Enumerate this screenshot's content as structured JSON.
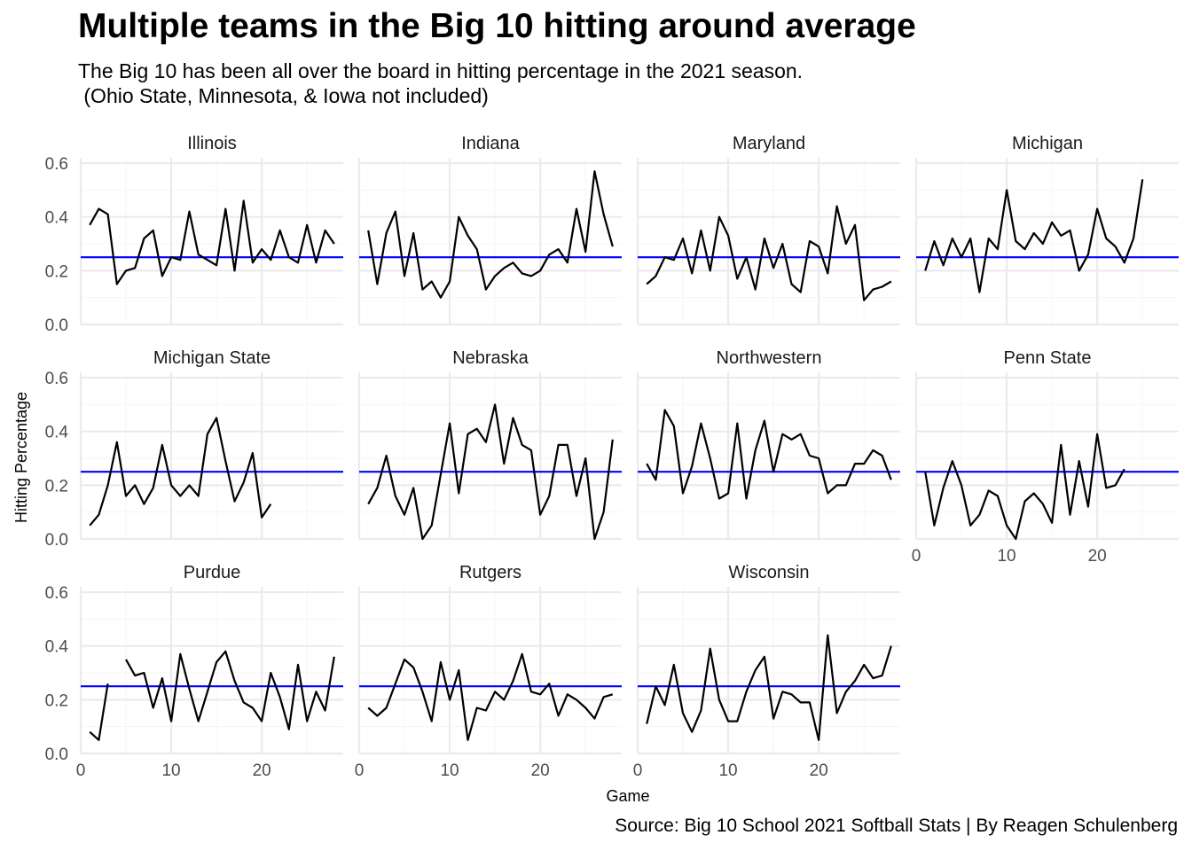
{
  "title": "Multiple teams in the Big 10 hitting around average",
  "subtitle": "The Big 10 has been all over the board in hitting percentage in the 2021 season.\n (Ohio State, Minnesota, & Iowa not included)",
  "caption": "Source: Big 10 School 2021 Softball Stats | By Reagen Schulenberg",
  "colors": {
    "line": "#000000",
    "reference": "#0000ff",
    "grid_major": "#ebebeb",
    "grid_minor": "#f5f5f5"
  },
  "chart_data": {
    "type": "line",
    "facets": "wrap",
    "ncol": 4,
    "xlabel": "Game",
    "ylabel": "Hitting Percentage",
    "xlim": [
      0,
      29
    ],
    "ylim": [
      0,
      0.62
    ],
    "x_ticks": [
      0,
      10,
      20
    ],
    "x_tick_labels": [
      "0",
      "10",
      "20"
    ],
    "y_ticks": [
      0,
      0.2,
      0.4,
      0.6
    ],
    "y_tick_labels": [
      "0.0",
      "0.2",
      "0.4",
      "0.6"
    ],
    "reference_line": 0.25,
    "grid": true,
    "panels": [
      {
        "name": "Illinois",
        "x": [
          1,
          2,
          3,
          4,
          5,
          6,
          7,
          8,
          9,
          10,
          11,
          12,
          13,
          14,
          15,
          16,
          17,
          18,
          19,
          20,
          21,
          22,
          23,
          24,
          25,
          26,
          27,
          28
        ],
        "y": [
          0.37,
          0.43,
          0.41,
          0.15,
          0.2,
          0.21,
          0.32,
          0.35,
          0.18,
          0.25,
          0.24,
          0.42,
          0.26,
          0.24,
          0.22,
          0.43,
          0.2,
          0.46,
          0.23,
          0.28,
          0.24,
          0.35,
          0.25,
          0.23,
          0.37,
          0.23,
          0.35,
          0.3
        ]
      },
      {
        "name": "Indiana",
        "x": [
          1,
          2,
          3,
          4,
          5,
          6,
          7,
          8,
          9,
          10,
          11,
          12,
          13,
          14,
          15,
          16,
          17,
          18,
          19,
          20,
          21,
          22,
          23,
          24,
          25,
          26,
          27,
          28
        ],
        "y": [
          0.35,
          0.15,
          0.34,
          0.42,
          0.18,
          0.34,
          0.13,
          0.16,
          0.1,
          0.16,
          0.4,
          0.33,
          0.28,
          0.13,
          0.18,
          0.21,
          0.23,
          0.19,
          0.18,
          0.2,
          0.26,
          0.28,
          0.23,
          0.43,
          0.27,
          0.57,
          0.41,
          0.29
        ]
      },
      {
        "name": "Maryland",
        "x": [
          1,
          2,
          3,
          4,
          5,
          6,
          7,
          8,
          9,
          10,
          11,
          12,
          13,
          14,
          15,
          16,
          17,
          18,
          19,
          20,
          21,
          22,
          23,
          24,
          25,
          26,
          27,
          28
        ],
        "y": [
          0.15,
          0.18,
          0.25,
          0.24,
          0.32,
          0.19,
          0.35,
          0.2,
          0.4,
          0.33,
          0.17,
          0.25,
          0.13,
          0.32,
          0.21,
          0.3,
          0.15,
          0.12,
          0.31,
          0.29,
          0.19,
          0.44,
          0.3,
          0.37,
          0.09,
          0.13,
          0.14,
          0.16
        ]
      },
      {
        "name": "Michigan",
        "x": [
          1,
          2,
          3,
          4,
          5,
          6,
          7,
          8,
          9,
          10,
          11,
          12,
          13,
          14,
          15,
          16,
          17,
          18,
          19,
          20,
          21,
          22,
          23,
          24,
          25
        ],
        "y": [
          0.2,
          0.31,
          0.22,
          0.32,
          0.25,
          0.32,
          0.12,
          0.32,
          0.28,
          0.5,
          0.31,
          0.28,
          0.34,
          0.3,
          0.38,
          0.33,
          0.35,
          0.2,
          0.26,
          0.43,
          0.32,
          0.29,
          0.23,
          0.32,
          0.54
        ]
      },
      {
        "name": "Michigan State",
        "x": [
          1,
          2,
          3,
          4,
          5,
          6,
          7,
          8,
          9,
          10,
          11,
          12,
          13,
          14,
          15,
          16,
          17,
          18,
          19,
          20,
          21
        ],
        "y": [
          0.05,
          0.09,
          0.2,
          0.36,
          0.16,
          0.2,
          0.13,
          0.19,
          0.35,
          0.2,
          0.16,
          0.2,
          0.16,
          0.39,
          0.45,
          0.29,
          0.14,
          0.21,
          0.32,
          0.08,
          0.13
        ]
      },
      {
        "name": "Nebraska",
        "x": [
          1,
          2,
          3,
          4,
          5,
          6,
          7,
          8,
          9,
          10,
          11,
          12,
          13,
          14,
          15,
          16,
          17,
          18,
          19,
          20,
          21,
          22,
          23,
          24,
          25,
          26,
          27,
          28
        ],
        "y": [
          0.13,
          0.19,
          0.31,
          0.16,
          0.09,
          0.19,
          0.0,
          0.05,
          0.24,
          0.43,
          0.17,
          0.39,
          0.41,
          0.36,
          0.5,
          0.28,
          0.45,
          0.35,
          0.33,
          0.09,
          0.16,
          0.35,
          0.35,
          0.16,
          0.3,
          0.0,
          0.1,
          0.37
        ]
      },
      {
        "name": "Northwestern",
        "x": [
          1,
          2,
          3,
          4,
          5,
          6,
          7,
          8,
          9,
          10,
          11,
          12,
          13,
          14,
          15,
          16,
          17,
          18,
          19,
          20,
          21,
          22,
          23,
          24,
          25,
          26,
          27,
          28
        ],
        "y": [
          0.28,
          0.22,
          0.48,
          0.42,
          0.17,
          0.27,
          0.43,
          0.3,
          0.15,
          0.17,
          0.43,
          0.15,
          0.33,
          0.44,
          0.25,
          0.39,
          0.37,
          0.39,
          0.31,
          0.3,
          0.17,
          0.2,
          0.2,
          0.28,
          0.28,
          0.33,
          0.31,
          0.22
        ]
      },
      {
        "name": "Penn State",
        "x": [
          1,
          2,
          3,
          4,
          5,
          6,
          7,
          8,
          9,
          10,
          11,
          12,
          13,
          14,
          15,
          16,
          17,
          18,
          19,
          20,
          21,
          22,
          23
        ],
        "y": [
          0.25,
          0.05,
          0.19,
          0.29,
          0.2,
          0.05,
          0.09,
          0.18,
          0.16,
          0.05,
          0.0,
          0.14,
          0.17,
          0.13,
          0.06,
          0.35,
          0.09,
          0.29,
          0.12,
          0.39,
          0.19,
          0.2,
          0.26
        ]
      },
      {
        "name": "Purdue",
        "x": [
          1,
          2,
          3,
          null,
          5,
          6,
          7,
          8,
          9,
          10,
          11,
          12,
          13,
          14,
          15,
          16,
          17,
          18,
          19,
          20,
          21,
          22,
          23,
          24,
          25,
          26,
          27,
          28
        ],
        "y": [
          0.08,
          0.05,
          0.26,
          null,
          0.35,
          0.29,
          0.3,
          0.17,
          0.28,
          0.12,
          0.37,
          0.24,
          0.12,
          0.23,
          0.34,
          0.38,
          0.27,
          0.19,
          0.17,
          0.12,
          0.3,
          0.21,
          0.09,
          0.33,
          0.12,
          0.23,
          0.16,
          0.36
        ]
      },
      {
        "name": "Rutgers",
        "x": [
          1,
          2,
          3,
          4,
          5,
          6,
          7,
          8,
          9,
          10,
          11,
          12,
          13,
          14,
          15,
          16,
          17,
          18,
          19,
          20,
          21,
          22,
          23,
          24,
          25,
          26,
          27,
          28
        ],
        "y": [
          0.17,
          0.14,
          0.17,
          0.26,
          0.35,
          0.32,
          0.23,
          0.12,
          0.34,
          0.2,
          0.31,
          0.05,
          0.17,
          0.16,
          0.23,
          0.2,
          0.27,
          0.37,
          0.23,
          0.22,
          0.26,
          0.14,
          0.22,
          0.2,
          0.17,
          0.13,
          0.21,
          0.22
        ]
      },
      {
        "name": "Wisconsin",
        "x": [
          1,
          2,
          3,
          4,
          5,
          6,
          7,
          8,
          9,
          10,
          11,
          12,
          13,
          14,
          15,
          16,
          17,
          18,
          19,
          20,
          21,
          22,
          23,
          24,
          25,
          26,
          27,
          28
        ],
        "y": [
          0.11,
          0.25,
          0.18,
          0.33,
          0.15,
          0.08,
          0.16,
          0.39,
          0.2,
          0.12,
          0.12,
          0.23,
          0.31,
          0.36,
          0.13,
          0.23,
          0.22,
          0.19,
          0.19,
          0.05,
          0.44,
          0.15,
          0.23,
          0.27,
          0.33,
          0.28,
          0.29,
          0.4
        ]
      }
    ]
  }
}
